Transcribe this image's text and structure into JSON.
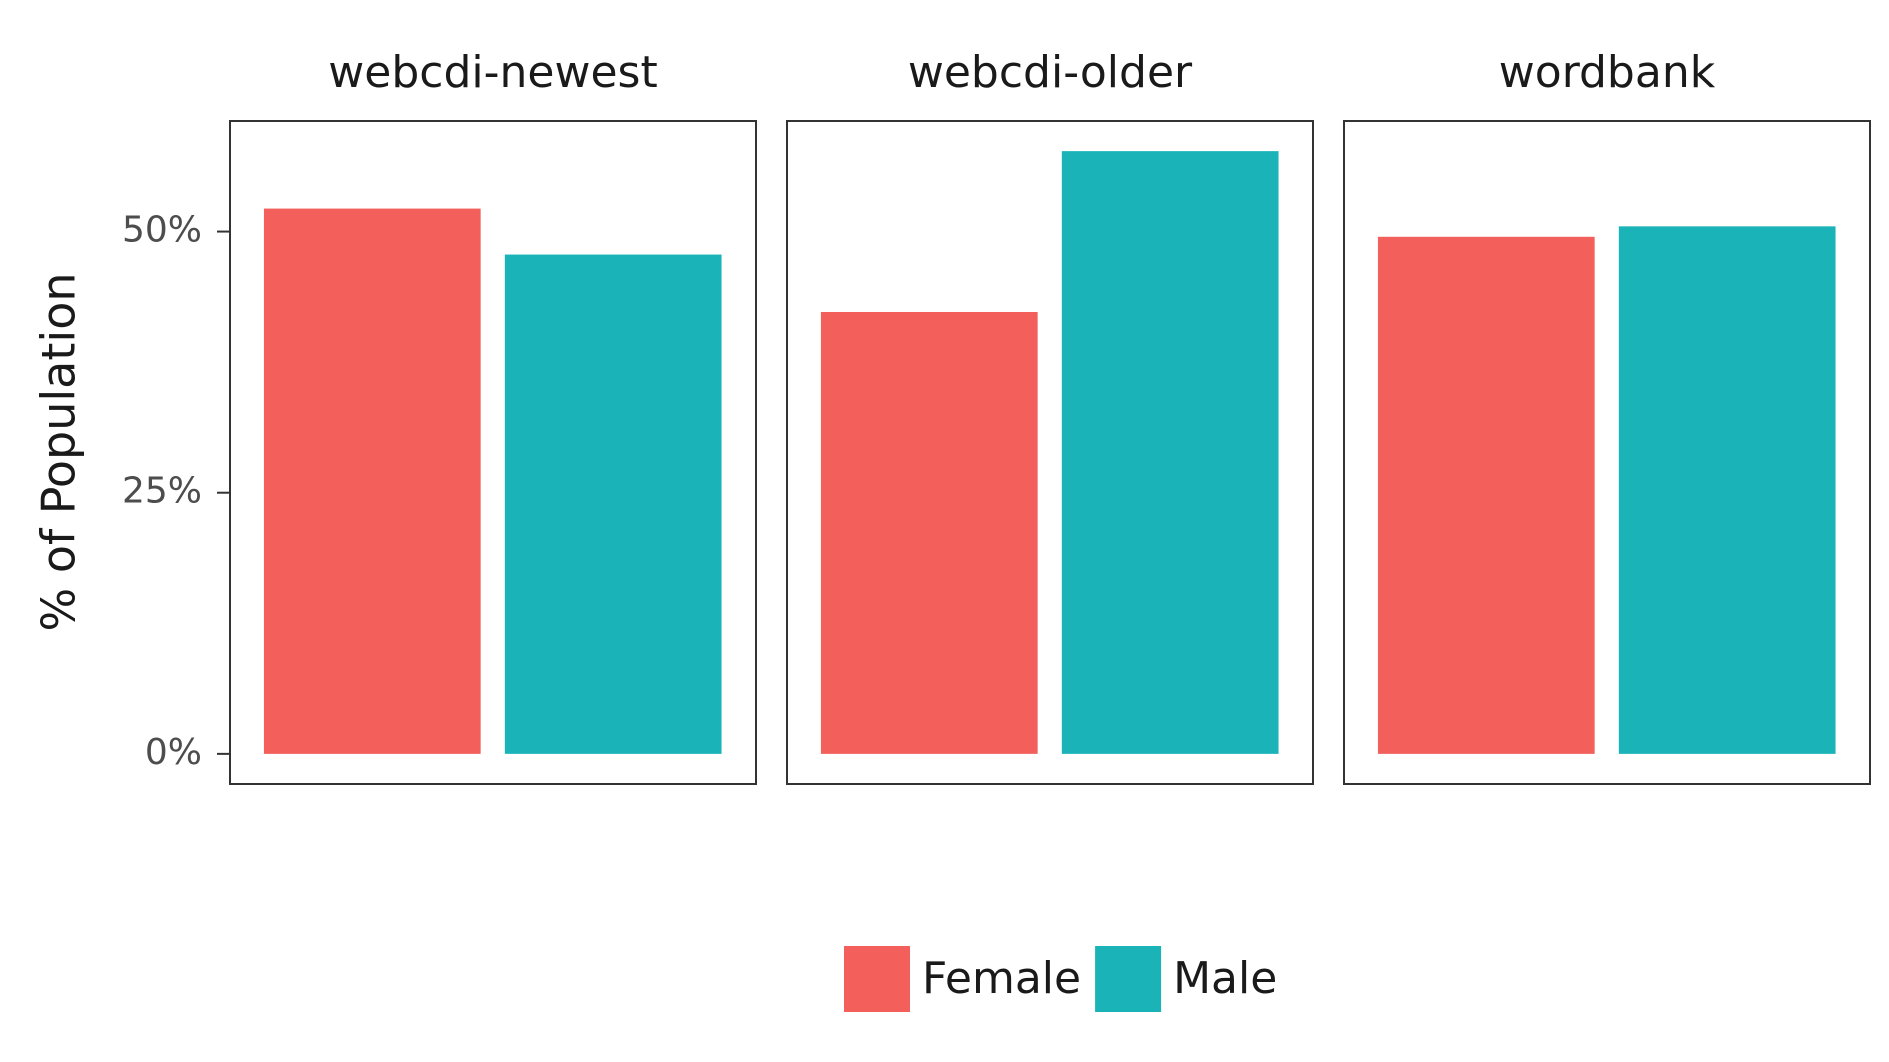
{
  "chart_data": {
    "type": "bar",
    "facet": true,
    "y_label": "% of Population",
    "categories": [
      "webcdi-newest",
      "webcdi-older",
      "wordbank"
    ],
    "series": [
      {
        "name": "Female",
        "color": "#f35f5b",
        "values": [
          52.2,
          42.3,
          49.5
        ]
      },
      {
        "name": "Male",
        "color": "#19b3b8",
        "values": [
          47.8,
          57.7,
          50.5
        ]
      }
    ],
    "ylim": [
      -2.885,
      60.585
    ],
    "yticks": [
      {
        "value": 0,
        "label": "0%"
      },
      {
        "value": 25,
        "label": "25%"
      },
      {
        "value": 50,
        "label": "50%"
      }
    ],
    "grid": false,
    "legend": "bottom"
  }
}
